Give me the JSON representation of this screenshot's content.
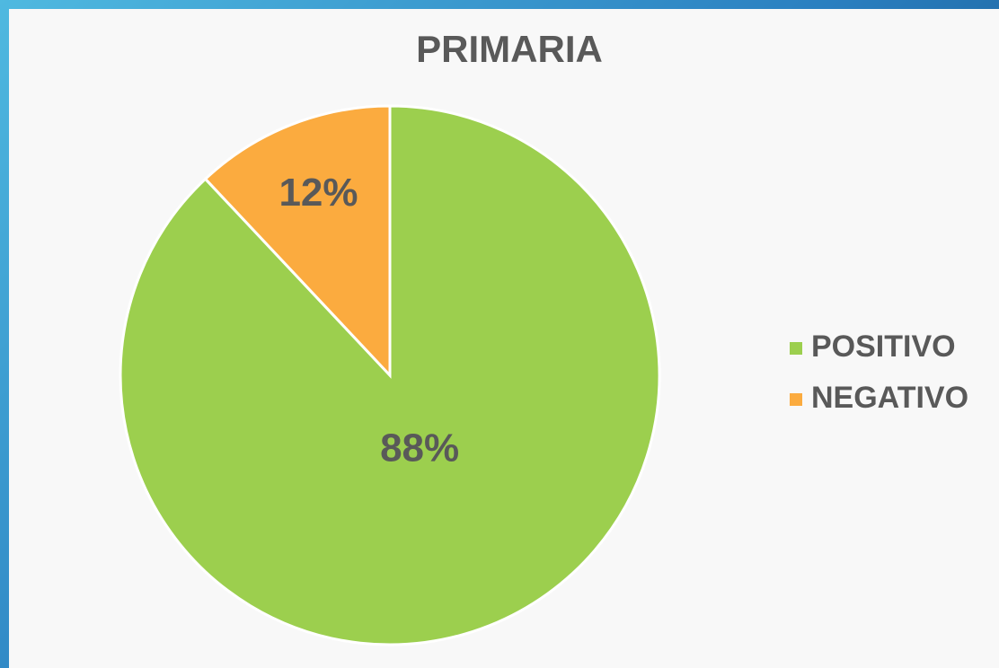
{
  "chart_data": {
    "type": "pie",
    "title": "PRIMARIA",
    "categories": [
      "POSITIVO",
      "NEGATIVO"
    ],
    "values": [
      88,
      12
    ],
    "value_labels": [
      "88%",
      "12%"
    ],
    "colors": [
      "#9ccf4e",
      "#fbab3f"
    ],
    "legend": "right"
  }
}
